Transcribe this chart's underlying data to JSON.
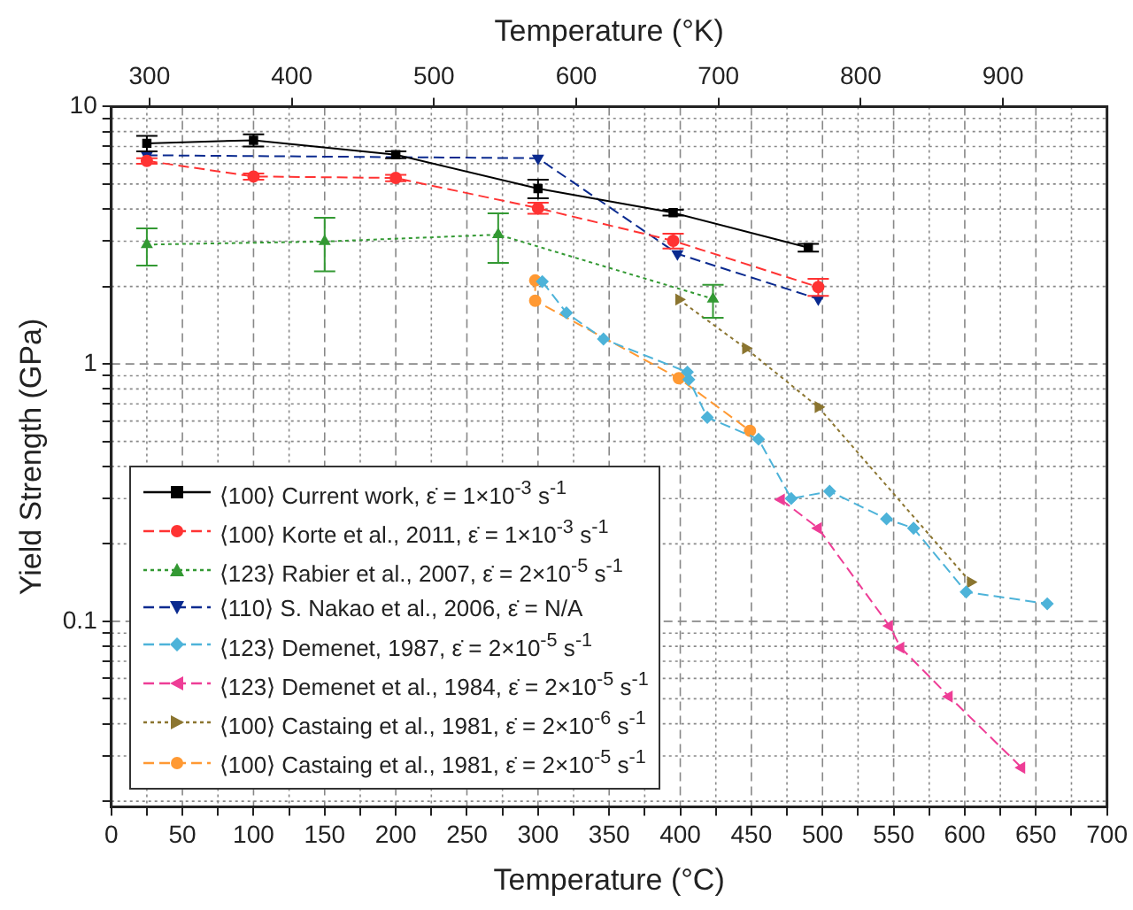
{
  "chart_data": {
    "type": "line",
    "xlabel": "Temperature (°C)",
    "ylabel": "Yield Strength (GPa)",
    "x2label": "Temperature (°K)",
    "xlim": [
      0,
      700
    ],
    "xticks": [
      0,
      {
        "value": 25,
        "label": null
      },
      50,
      {
        "value": 75,
        "label": null
      },
      100,
      {
        "value": 125,
        "label": null
      },
      150,
      {
        "value": 175,
        "label": null
      },
      200,
      {
        "value": 225,
        "label": null
      },
      250,
      {
        "value": 275,
        "label": null
      },
      300,
      {
        "value": 325,
        "label": null
      },
      350,
      {
        "value": 375,
        "label": null
      },
      400,
      {
        "value": 425,
        "label": null
      },
      450,
      {
        "value": 475,
        "label": null
      },
      500,
      {
        "value": 525,
        "label": null
      },
      550,
      {
        "value": 575,
        "label": null
      },
      600,
      {
        "value": 625,
        "label": null
      },
      650,
      {
        "value": 675,
        "label": null
      },
      700
    ],
    "x2lim": [
      273.15,
      973.15
    ],
    "x2ticks": [
      300,
      400,
      500,
      600,
      700,
      800,
      900
    ],
    "ylim": [
      0.019,
      10
    ],
    "yticks": [
      {
        "value": 0.02,
        "label": null
      },
      {
        "value": 0.03,
        "label": null
      },
      {
        "value": 0.04,
        "label": null
      },
      {
        "value": 0.05,
        "label": null
      },
      {
        "value": 0.06,
        "label": null
      },
      {
        "value": 0.07,
        "label": null
      },
      {
        "value": 0.08,
        "label": null
      },
      {
        "value": 0.09,
        "label": null
      },
      0.1,
      {
        "value": 0.2,
        "label": null
      },
      {
        "value": 0.3,
        "label": null
      },
      {
        "value": 0.4,
        "label": null
      },
      {
        "value": 0.5,
        "label": null
      },
      {
        "value": 0.6,
        "label": null
      },
      {
        "value": 0.7,
        "label": null
      },
      {
        "value": 0.8,
        "label": null
      },
      {
        "value": 0.9,
        "label": null
      },
      1,
      {
        "value": 2,
        "label": null
      },
      {
        "value": 3,
        "label": null
      },
      {
        "value": 4,
        "label": null
      },
      {
        "value": 5,
        "label": null
      },
      {
        "value": 6,
        "label": null
      },
      {
        "value": 7,
        "label": null
      },
      {
        "value": 8,
        "label": null
      },
      {
        "value": 9,
        "label": null
      },
      10
    ],
    "log": "y",
    "grid": true,
    "legend": "bottom left",
    "series": [
      {
        "name": "⟨100⟩ Current work, ε̇ = 1×10$^{-3}$ s$^{-1}$",
        "color": "#000000",
        "marker": "square",
        "line_style": "solid",
        "x": [
          25,
          100,
          200,
          300,
          395,
          490
        ],
        "values": [
          7.2,
          7.4,
          6.5,
          4.8,
          3.87,
          2.83
        ],
        "errors": [
          0.5,
          0.4,
          0.2,
          0.4,
          0.1,
          0.1
        ]
      },
      {
        "name": "⟨100⟩ Korte et al., 2011, ε̇ = 1×10$^{-3}$ s$^{-1}$",
        "color": "#ff3333",
        "marker": "circle",
        "line_style": "dashed",
        "x": [
          25,
          100,
          200,
          300,
          395,
          497
        ],
        "values": [
          6.15,
          5.35,
          5.28,
          4.03,
          3.01,
          1.99
        ],
        "errors": [
          0.15,
          0.15,
          0.15,
          0.2,
          0.2,
          0.15
        ]
      },
      {
        "name": "⟨123⟩ Rabier et al., 2007, ε̇ = 2×10$^{-5}$ s$^{-1}$",
        "color": "#339933",
        "marker": "triangle",
        "line_style": "dotted",
        "x": [
          25,
          150,
          272,
          423
        ],
        "values": [
          2.91,
          2.99,
          3.18,
          1.79
        ],
        "errors": [
          [
            2.41,
            3.36
          ],
          [
            2.29,
            3.7
          ],
          [
            2.47,
            3.85
          ],
          [
            1.51,
            2.03
          ]
        ]
      },
      {
        "name": "⟨110⟩ S. Nakao et al., 2006, ε̇ = N/A",
        "color": "#0a2a8f",
        "marker": "triangle-down",
        "line_style": "dashed",
        "x": [
          25,
          300,
          398,
          497
        ],
        "values": [
          6.47,
          6.3,
          2.68,
          1.79
        ]
      },
      {
        "name": "⟨123⟩ Demenet, 1987, ε̇ = 2×10$^{-5}$ s$^{-1}$",
        "color": "#4db3d9",
        "marker": "diamond",
        "line_style": "dashed",
        "x": [
          303,
          320,
          346,
          405,
          406,
          419,
          455,
          478,
          505,
          545,
          564,
          601,
          658
        ],
        "values": [
          2.09,
          1.58,
          1.25,
          0.93,
          0.87,
          0.62,
          0.51,
          0.3,
          0.32,
          0.25,
          0.23,
          0.13,
          0.117
        ]
      },
      {
        "name": "⟨123⟩ Demenet et al., 1984, ε̇ = 2×10$^{-5}$ s$^{-1}$",
        "color": "#ee3d96",
        "marker": "triangle-left",
        "line_style": "dashed",
        "x": [
          471,
          497,
          547,
          555,
          589,
          640
        ],
        "values": [
          0.297,
          0.23,
          0.096,
          0.079,
          0.051,
          0.027
        ]
      },
      {
        "name": "⟨100⟩ Castaing et al., 1981, ε̇ = 2×10$^{-6}$ s$^{-1}$",
        "color": "#8b7530",
        "marker": "triangle-right",
        "line_style": "dotted",
        "x": [
          399,
          446,
          497,
          604
        ],
        "values": [
          1.78,
          1.15,
          0.68,
          0.142
        ]
      },
      {
        "name": "⟨100⟩ Castaing et al., 1981, ε̇ = 2×10$^{-5}$ s$^{-1}$",
        "color": "#ff9933",
        "marker": "circle",
        "line_style": "dashed",
        "x": [
          298,
          298,
          399,
          449
        ],
        "values": [
          2.11,
          1.76,
          0.88,
          0.55
        ]
      }
    ]
  }
}
